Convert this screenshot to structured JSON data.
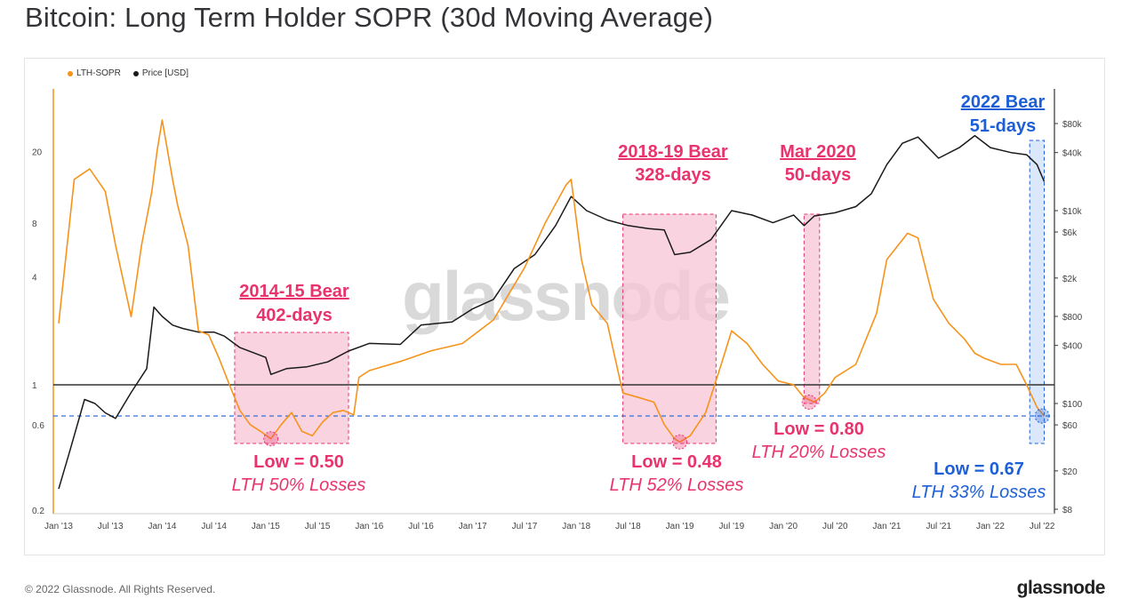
{
  "header": {
    "title": "Bitcoin: Long Term Holder SOPR (30d Moving Average)"
  },
  "footer": {
    "copyright": "© 2022 Glassnode. All Rights Reserved.",
    "brand": "glassnode"
  },
  "watermark": "glassnode",
  "colors": {
    "sopr": "#f7931a",
    "price": "#1a1a1a",
    "pink": "#e8336d",
    "blue": "#1d5fd6",
    "pinkFill": "#f7c6d6",
    "blueFill": "#cfe0fb"
  },
  "chart_data": {
    "type": "line",
    "title": "Bitcoin: Long Term Holder SOPR (30d Moving Average)",
    "legend": [
      {
        "name": "LTH-SOPR",
        "color": "#f7931a"
      },
      {
        "name": "Price [USD]",
        "color": "#1a1a1a"
      }
    ],
    "x_ticks": [
      "Jan '13",
      "Jul '13",
      "Jan '14",
      "Jul '14",
      "Jan '15",
      "Jul '15",
      "Jan '16",
      "Jul '16",
      "Jan '17",
      "Jul '17",
      "Jan '18",
      "Jul '18",
      "Jan '19",
      "Jul '19",
      "Jan '20",
      "Jul '20",
      "Jan '21",
      "Jul '21",
      "Jan '22",
      "Jul '22"
    ],
    "left_axis": {
      "scale": "log",
      "ticks": [
        "20",
        "8",
        "4",
        "1",
        "0.6",
        "0.2"
      ],
      "range": [
        0.2,
        40
      ]
    },
    "right_axis": {
      "scale": "log",
      "ticks": [
        "$80k",
        "$40k",
        "$10k",
        "$6k",
        "$2k",
        "$800",
        "$400",
        "$100",
        "$60",
        "$20",
        "$8"
      ],
      "range": [
        8,
        150000
      ]
    },
    "series": [
      {
        "name": "LTH-SOPR",
        "x": [
          2013.0,
          2013.15,
          2013.3,
          2013.45,
          2013.55,
          2013.7,
          2013.8,
          2013.9,
          2013.95,
          2014.0,
          2014.1,
          2014.15,
          2014.25,
          2014.35,
          2014.45,
          2014.55,
          2014.65,
          2014.75,
          2014.85,
          2014.95,
          2015.05,
          2015.15,
          2015.25,
          2015.35,
          2015.45,
          2015.55,
          2015.65,
          2015.75,
          2015.85,
          2015.9,
          2016.0,
          2016.3,
          2016.6,
          2016.9,
          2017.2,
          2017.5,
          2017.7,
          2017.9,
          2017.95,
          2018.05,
          2018.15,
          2018.3,
          2018.45,
          2018.6,
          2018.75,
          2018.85,
          2018.95,
          2019.0,
          2019.1,
          2019.25,
          2019.4,
          2019.5,
          2019.65,
          2019.8,
          2019.95,
          2020.1,
          2020.2,
          2020.3,
          2020.4,
          2020.5,
          2020.7,
          2020.9,
          2021.0,
          2021.2,
          2021.3,
          2021.45,
          2021.6,
          2021.75,
          2021.85,
          2021.95,
          2022.1,
          2022.25,
          2022.35,
          2022.45,
          2022.52
        ],
        "values": [
          2.2,
          14,
          16,
          12,
          6,
          2.4,
          6,
          12,
          20,
          30,
          14,
          10,
          6,
          2.0,
          1.9,
          1.4,
          1.0,
          0.72,
          0.6,
          0.55,
          0.5,
          0.6,
          0.7,
          0.55,
          0.52,
          0.62,
          0.7,
          0.72,
          0.68,
          1.1,
          1.2,
          1.35,
          1.55,
          1.7,
          2.3,
          4.5,
          8.0,
          13,
          14,
          5,
          2.8,
          2.2,
          0.9,
          0.85,
          0.8,
          0.6,
          0.5,
          0.48,
          0.52,
          0.7,
          1.3,
          2.0,
          1.7,
          1.3,
          1.05,
          1.0,
          0.85,
          0.8,
          0.9,
          1.1,
          1.3,
          2.5,
          5.0,
          7.0,
          6.6,
          3.0,
          2.2,
          1.8,
          1.5,
          1.4,
          1.3,
          1.3,
          1.0,
          0.75,
          0.67
        ]
      },
      {
        "name": "Price [USD]",
        "x": [
          2013.0,
          2013.1,
          2013.25,
          2013.35,
          2013.45,
          2013.55,
          2013.7,
          2013.85,
          2013.92,
          2014.0,
          2014.1,
          2014.2,
          2014.35,
          2014.5,
          2014.6,
          2014.75,
          2014.9,
          2015.0,
          2015.05,
          2015.2,
          2015.4,
          2015.6,
          2015.8,
          2016.0,
          2016.3,
          2016.5,
          2016.8,
          2017.0,
          2017.2,
          2017.4,
          2017.6,
          2017.8,
          2017.95,
          2018.1,
          2018.3,
          2018.5,
          2018.7,
          2018.85,
          2018.95,
          2019.1,
          2019.3,
          2019.5,
          2019.7,
          2019.9,
          2020.1,
          2020.2,
          2020.3,
          2020.5,
          2020.7,
          2020.85,
          2021.0,
          2021.15,
          2021.3,
          2021.5,
          2021.7,
          2021.85,
          2022.0,
          2022.2,
          2022.35,
          2022.45,
          2022.52
        ],
        "values": [
          13,
          30,
          110,
          100,
          80,
          70,
          130,
          230,
          1000,
          800,
          650,
          600,
          550,
          550,
          500,
          380,
          330,
          300,
          200,
          230,
          240,
          270,
          350,
          420,
          410,
          650,
          700,
          960,
          1200,
          2500,
          3500,
          7000,
          14000,
          10000,
          8000,
          7000,
          6500,
          6300,
          3500,
          3700,
          5000,
          10000,
          9000,
          7500,
          9000,
          7000,
          8800,
          9500,
          11000,
          15000,
          30000,
          50000,
          58000,
          35000,
          45000,
          60000,
          45000,
          40000,
          38000,
          30000,
          20000
        ]
      }
    ],
    "reference_lines": [
      {
        "value": 1.0,
        "style": "solid",
        "color": "#333333"
      },
      {
        "value": 0.67,
        "style": "dashed",
        "color": "#1d5fd6"
      }
    ],
    "annotations": [
      {
        "title_line1": "2014-15 Bear",
        "title_line2": "402-days",
        "low": "Low = 0.50",
        "sub": "LTH 50% Losses",
        "x_start": 2014.7,
        "x_end": 2015.8,
        "low_x": 2015.05,
        "low_value": 0.5,
        "color": "pink"
      },
      {
        "title_line1": "2018-19 Bear",
        "title_line2": "328-days",
        "low": "Low = 0.48",
        "sub": "LTH 52% Losses",
        "x_start": 2018.45,
        "x_end": 2019.35,
        "low_x": 2019.0,
        "low_value": 0.48,
        "color": "pink"
      },
      {
        "title_line1": "Mar 2020",
        "title_line2": "50-days",
        "low": "Low = 0.80",
        "sub": "LTH 20% Losses",
        "x_start": 2020.2,
        "x_end": 2020.35,
        "low_x": 2020.25,
        "low_value": 0.8,
        "color": "pink"
      },
      {
        "title_line1": "2022 Bear",
        "title_line2": "51-days",
        "low": "Low = 0.67",
        "sub": "LTH 33% Losses",
        "x_start": 2022.38,
        "x_end": 2022.52,
        "low_x": 2022.5,
        "low_value": 0.67,
        "color": "blue"
      }
    ]
  }
}
